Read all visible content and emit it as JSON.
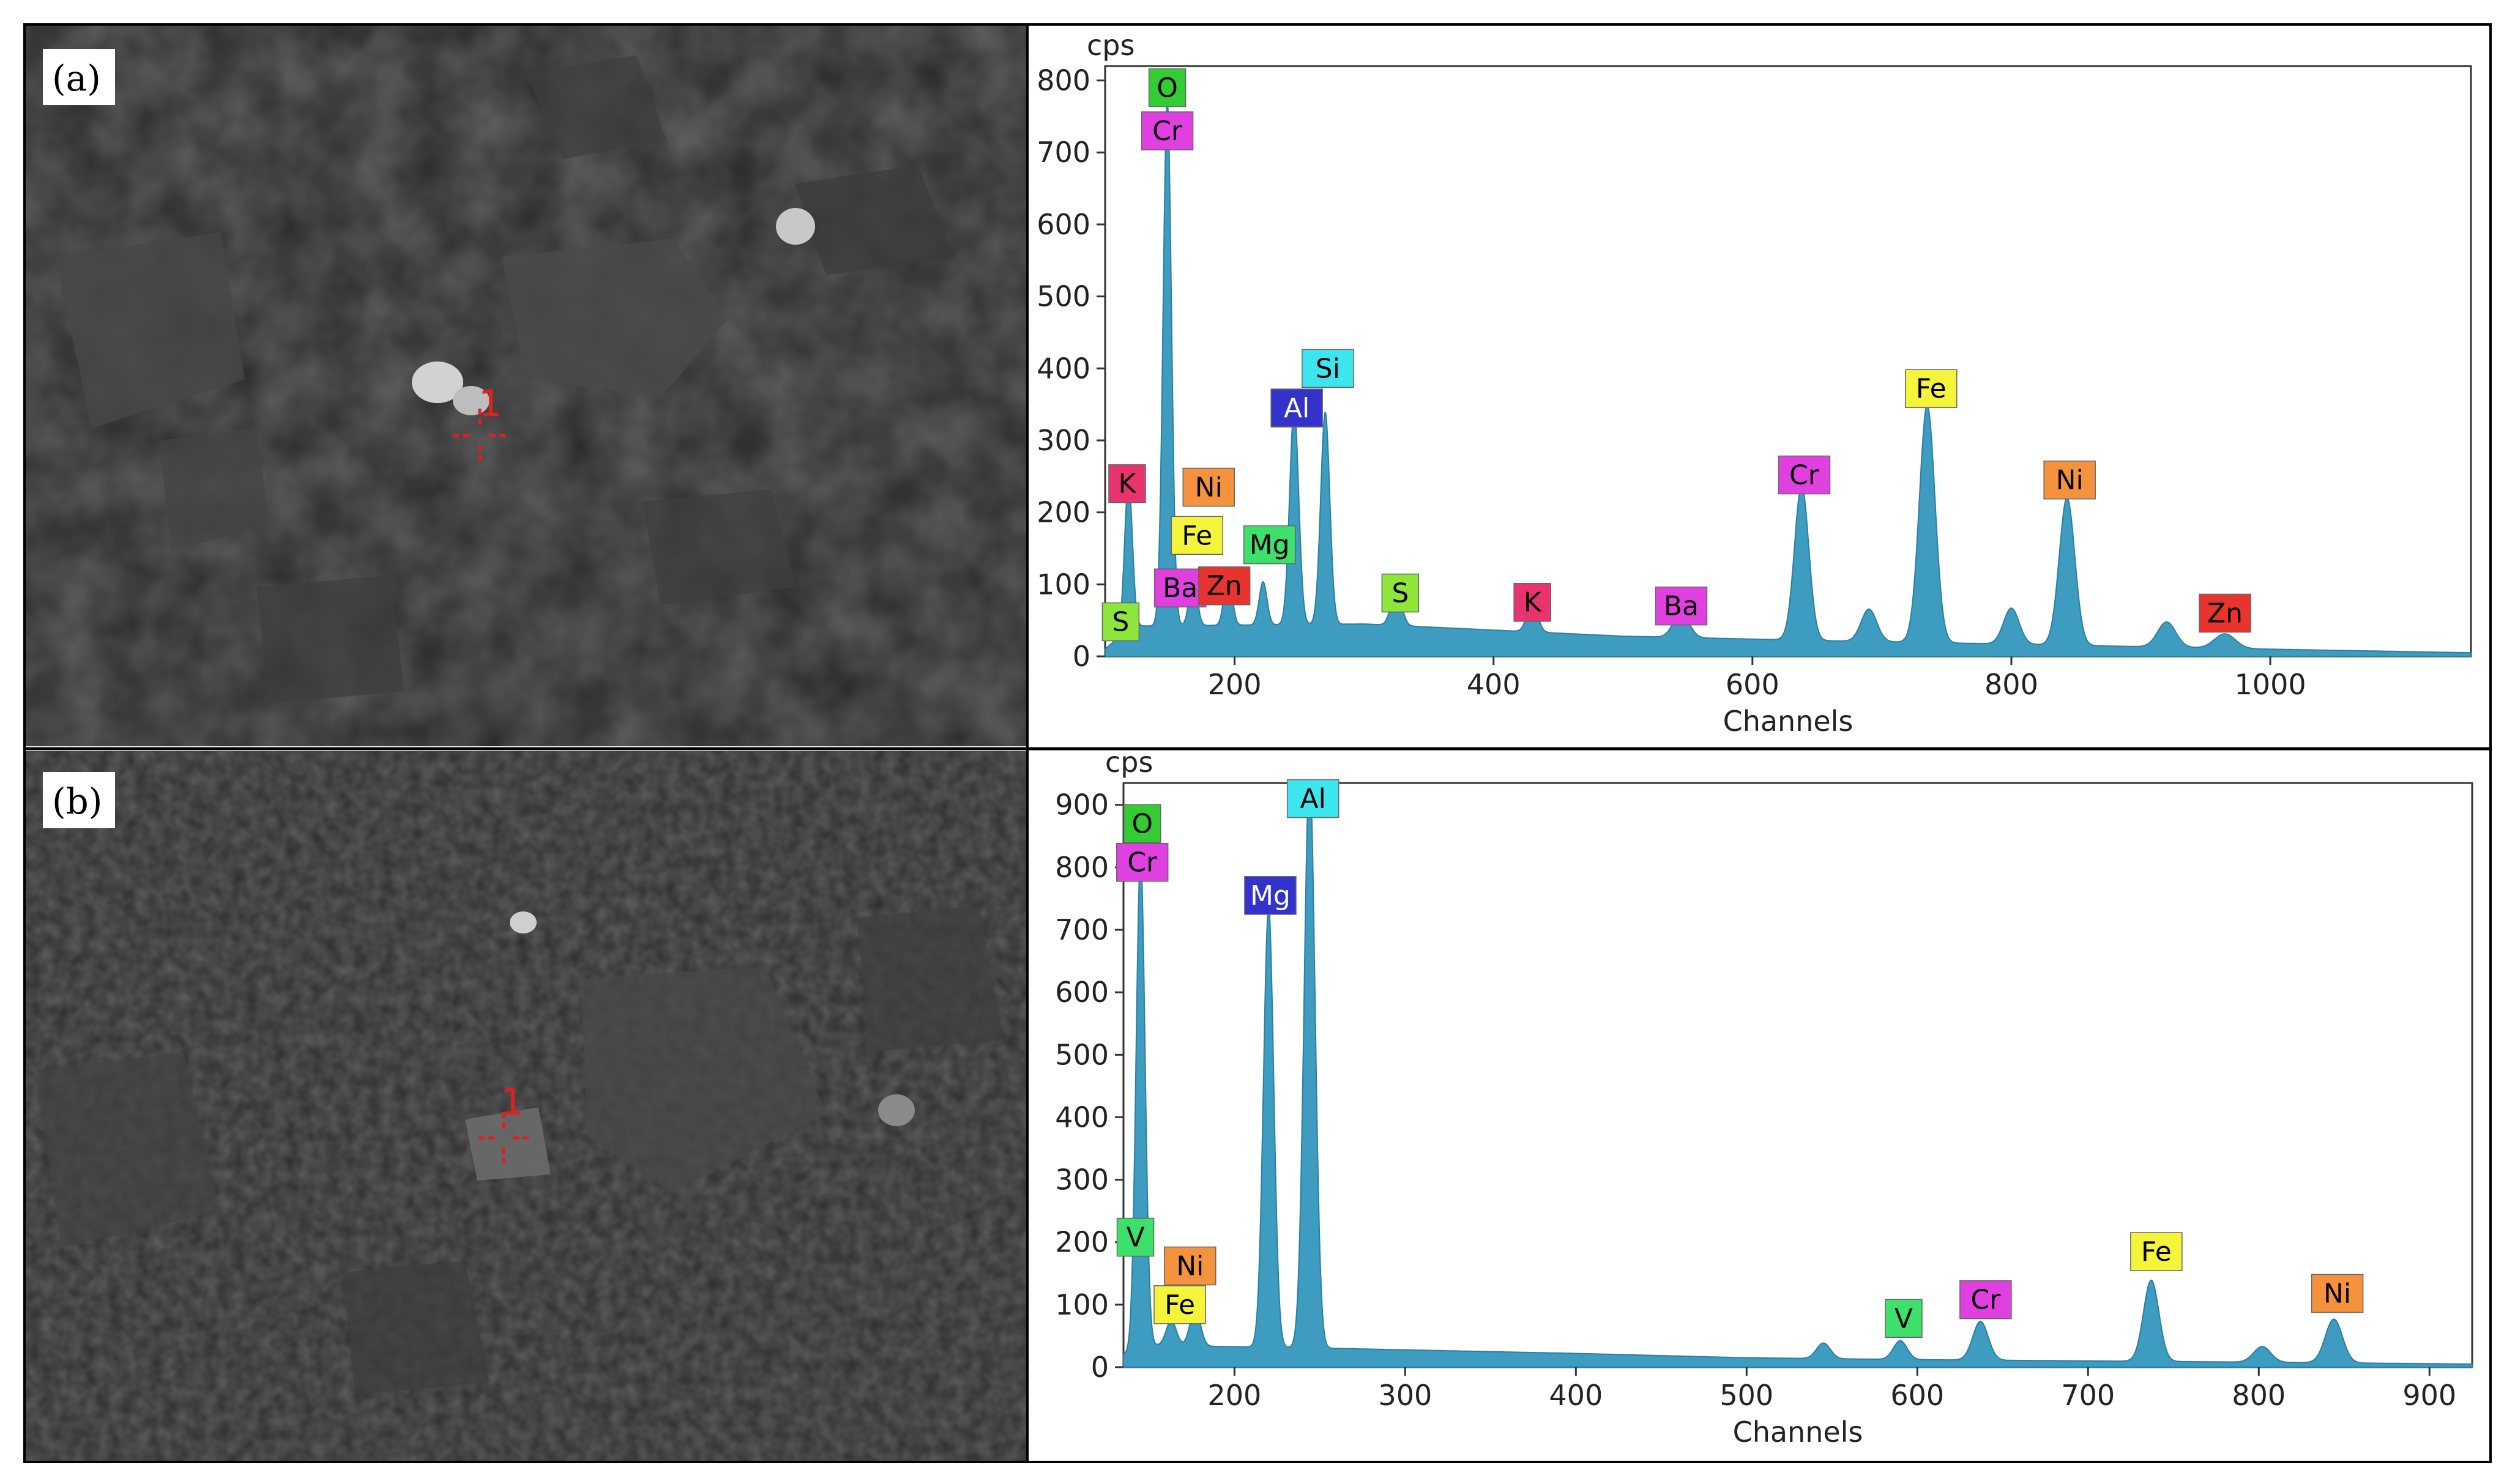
{
  "panels": [
    {
      "label": "(a)",
      "marker": "1"
    },
    {
      "label": "(b)",
      "marker": "1"
    }
  ],
  "chart_data": [
    {
      "type": "area",
      "title": "",
      "xlabel": "Channels",
      "ylabel": "cps",
      "xlim": [
        100,
        1155
      ],
      "ylim": [
        0,
        820
      ],
      "xticks": [
        200,
        400,
        600,
        800,
        1000
      ],
      "yticks": [
        0,
        100,
        200,
        300,
        400,
        500,
        600,
        700,
        800
      ],
      "fill_color": "#3d9cbf",
      "baseline": {
        "x": [
          100,
          120,
          300,
          500,
          650,
          800,
          1000,
          1155
        ],
        "y": [
          10,
          42,
          45,
          28,
          22,
          17,
          10,
          5
        ]
      },
      "peaks": [
        {
          "x": 118,
          "y": 205,
          "w": 3
        },
        {
          "x": 148,
          "y": 730,
          "w": 3.2
        },
        {
          "x": 168,
          "y": 70,
          "w": 3
        },
        {
          "x": 195,
          "y": 75,
          "w": 3
        },
        {
          "x": 222,
          "y": 60,
          "w": 3
        },
        {
          "x": 246,
          "y": 300,
          "w": 3.5
        },
        {
          "x": 270,
          "y": 295,
          "w": 3.5
        },
        {
          "x": 325,
          "y": 50,
          "w": 4
        },
        {
          "x": 430,
          "y": 42,
          "w": 4
        },
        {
          "x": 545,
          "y": 35,
          "w": 6
        },
        {
          "x": 638,
          "y": 215,
          "w": 5.5
        },
        {
          "x": 690,
          "y": 45,
          "w": 6
        },
        {
          "x": 735,
          "y": 330,
          "w": 6
        },
        {
          "x": 800,
          "y": 50,
          "w": 6
        },
        {
          "x": 843,
          "y": 205,
          "w": 6
        },
        {
          "x": 920,
          "y": 35,
          "w": 7
        },
        {
          "x": 965,
          "y": 20,
          "w": 8
        }
      ],
      "element_labels": [
        {
          "text": "O",
          "x": 148,
          "y": 790,
          "bg": "#33cc33",
          "fg": "#000000"
        },
        {
          "text": "Cr",
          "x": 148,
          "y": 730,
          "bg": "#e040e0",
          "fg": "#000000"
        },
        {
          "text": "K",
          "x": 117,
          "y": 240,
          "bg": "#e8336f",
          "fg": "#000000"
        },
        {
          "text": "Ni",
          "x": 180,
          "y": 235,
          "bg": "#f5923e",
          "fg": "#000000"
        },
        {
          "text": "Fe",
          "x": 171,
          "y": 168,
          "bg": "#f4f43a",
          "fg": "#000000"
        },
        {
          "text": "Mg",
          "x": 227,
          "y": 155,
          "bg": "#3de06a",
          "fg": "#000000"
        },
        {
          "text": "Ba",
          "x": 158,
          "y": 95,
          "bg": "#e040e0",
          "fg": "#000000"
        },
        {
          "text": "Zn",
          "x": 192,
          "y": 98,
          "bg": "#e8332f",
          "fg": "#000000"
        },
        {
          "text": "S",
          "x": 112,
          "y": 48,
          "bg": "#8ee63a",
          "fg": "#000000"
        },
        {
          "text": "Al",
          "x": 248,
          "y": 345,
          "bg": "#3333cc",
          "fg": "#ffffff"
        },
        {
          "text": "Si",
          "x": 272,
          "y": 400,
          "bg": "#3de6ee",
          "fg": "#000000"
        },
        {
          "text": "S",
          "x": 328,
          "y": 88,
          "bg": "#8ee63a",
          "fg": "#000000"
        },
        {
          "text": "K",
          "x": 430,
          "y": 75,
          "bg": "#e8336f",
          "fg": "#000000"
        },
        {
          "text": "Ba",
          "x": 545,
          "y": 70,
          "bg": "#e040e0",
          "fg": "#000000"
        },
        {
          "text": "Cr",
          "x": 640,
          "y": 252,
          "bg": "#e040e0",
          "fg": "#000000"
        },
        {
          "text": "Fe",
          "x": 738,
          "y": 372,
          "bg": "#f4f43a",
          "fg": "#000000"
        },
        {
          "text": "Ni",
          "x": 845,
          "y": 245,
          "bg": "#f5923e",
          "fg": "#000000"
        },
        {
          "text": "Zn",
          "x": 965,
          "y": 60,
          "bg": "#e8332f",
          "fg": "#000000"
        }
      ]
    },
    {
      "type": "area",
      "title": "",
      "xlabel": "Channels",
      "ylabel": "cps",
      "xlim": [
        135,
        925
      ],
      "ylim": [
        0,
        935
      ],
      "xticks": [
        200,
        300,
        400,
        500,
        600,
        700,
        800,
        900
      ],
      "yticks": [
        0,
        100,
        200,
        300,
        400,
        500,
        600,
        700,
        800,
        900
      ],
      "fill_color": "#3d9cbf",
      "baseline": {
        "x": [
          135,
          150,
          260,
          400,
          500,
          600,
          700,
          800,
          925
        ],
        "y": [
          20,
          35,
          30,
          22,
          15,
          12,
          10,
          8,
          5
        ]
      },
      "peaks": [
        {
          "x": 145,
          "y": 790,
          "w": 2.6
        },
        {
          "x": 163,
          "y": 40,
          "w": 3
        },
        {
          "x": 177,
          "y": 60,
          "w": 3
        },
        {
          "x": 220,
          "y": 705,
          "w": 3
        },
        {
          "x": 244,
          "y": 925,
          "w": 3.2
        },
        {
          "x": 545,
          "y": 25,
          "w": 4
        },
        {
          "x": 590,
          "y": 30,
          "w": 4
        },
        {
          "x": 637,
          "y": 62,
          "w": 4.5
        },
        {
          "x": 737,
          "y": 130,
          "w": 4.5
        },
        {
          "x": 802,
          "y": 25,
          "w": 5
        },
        {
          "x": 844,
          "y": 70,
          "w": 5
        }
      ],
      "element_labels": [
        {
          "text": "O",
          "x": 146,
          "y": 870,
          "bg": "#33cc33",
          "fg": "#000000"
        },
        {
          "text": "Cr",
          "x": 146,
          "y": 808,
          "bg": "#e040e0",
          "fg": "#000000"
        },
        {
          "text": "Mg",
          "x": 221,
          "y": 755,
          "bg": "#3333cc",
          "fg": "#ffffff"
        },
        {
          "text": "Al",
          "x": 246,
          "y": 910,
          "bg": "#3de6ee",
          "fg": "#000000"
        },
        {
          "text": "V",
          "x": 142,
          "y": 208,
          "bg": "#3de06a",
          "fg": "#000000"
        },
        {
          "text": "Ni",
          "x": 174,
          "y": 162,
          "bg": "#f5923e",
          "fg": "#000000"
        },
        {
          "text": "Fe",
          "x": 168,
          "y": 100,
          "bg": "#f4f43a",
          "fg": "#000000"
        },
        {
          "text": "V",
          "x": 592,
          "y": 78,
          "bg": "#3de06a",
          "fg": "#000000"
        },
        {
          "text": "Cr",
          "x": 640,
          "y": 108,
          "bg": "#e040e0",
          "fg": "#000000"
        },
        {
          "text": "Fe",
          "x": 740,
          "y": 185,
          "bg": "#f4f43a",
          "fg": "#000000"
        },
        {
          "text": "Ni",
          "x": 846,
          "y": 118,
          "bg": "#f5923e",
          "fg": "#000000"
        }
      ]
    }
  ]
}
